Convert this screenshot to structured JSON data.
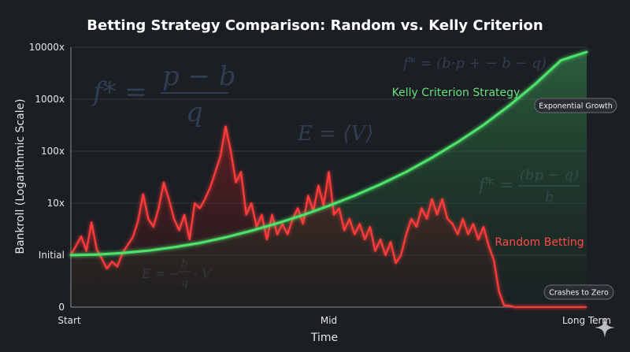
{
  "chart_data": {
    "type": "line",
    "title": "Betting Strategy Comparison: Random vs. Kelly Criterion",
    "xlabel": "Time",
    "ylabel": "Bankroll (Logarithmic Scale)",
    "x_ticks": [
      "Start",
      "Mid",
      "Long Term"
    ],
    "y_ticks": [
      "0",
      "Initial",
      "10x",
      "100x",
      "1000x",
      "10000x"
    ],
    "y_scale": "log",
    "grid": true,
    "x_range": [
      0,
      100
    ],
    "series": [
      {
        "name": "Kelly Criterion Strategy",
        "color": "#4ee36a",
        "x": [
          0,
          5,
          10,
          15,
          20,
          25,
          30,
          35,
          40,
          45,
          50,
          55,
          60,
          65,
          70,
          75,
          80,
          85,
          90,
          95,
          100
        ],
        "values": [
          1,
          1.03,
          1.1,
          1.22,
          1.42,
          1.72,
          2.2,
          2.95,
          4.1,
          5.9,
          8.9,
          14,
          23,
          40,
          75,
          150,
          320,
          760,
          1950,
          5600,
          18000
        ]
      },
      {
        "name": "Random Betting",
        "color": "#ff3b3b",
        "x": [
          0,
          2,
          3,
          4,
          5,
          7,
          8,
          9,
          10,
          12,
          13,
          14,
          15,
          16,
          17,
          18,
          19,
          20,
          21,
          22,
          23,
          24,
          25,
          26,
          27,
          28,
          29,
          30,
          31,
          32,
          33,
          34,
          35,
          36,
          37,
          38,
          39,
          40,
          41,
          42,
          43,
          44,
          45,
          46,
          47,
          48,
          49,
          50,
          51,
          52,
          53,
          54,
          55,
          56,
          57,
          58,
          59,
          60,
          61,
          62,
          63,
          64,
          65,
          66,
          67,
          68,
          69,
          70,
          71,
          72,
          73,
          74,
          75,
          76,
          77,
          78,
          79,
          80,
          81,
          82,
          83,
          84,
          85,
          86,
          87,
          88,
          100
        ],
        "values": [
          1,
          2.3,
          1.2,
          4.3,
          1.3,
          0.55,
          0.75,
          0.6,
          1.1,
          2.2,
          4.5,
          15,
          5,
          3.5,
          8,
          25,
          12,
          5,
          3,
          6,
          2,
          10,
          8,
          12,
          20,
          40,
          80,
          300,
          100,
          25,
          40,
          6,
          10,
          3.5,
          6,
          2,
          6,
          2.5,
          4,
          2.5,
          5,
          8,
          4,
          14,
          7,
          22,
          9,
          40,
          6,
          8,
          3,
          5,
          2.5,
          4,
          2,
          3.5,
          1.2,
          2,
          1,
          1.8,
          0.7,
          1,
          2.5,
          5,
          3.5,
          8,
          5,
          12,
          6,
          12,
          5,
          4,
          2.5,
          5,
          2.5,
          4,
          2,
          3.5,
          1.5,
          0.8,
          0.2,
          0.05,
          0.015,
          0,
          0,
          0,
          0
        ]
      }
    ],
    "annotations": [
      {
        "text": "Exponential Growth",
        "x": 95,
        "y": 1000
      },
      {
        "text": "Crashes to Zero",
        "x": 95,
        "y": 0.02
      }
    ],
    "background_formulas": [
      "f* = (p − b)/q",
      "E = ⟨V⟩",
      "f* = (bp − q)/b",
      "E = −(b/q)·V"
    ],
    "colors": {
      "background": "#1b1e23",
      "kelly": "#4ee36a",
      "random": "#ff3b3b",
      "grid": "#34373d"
    }
  }
}
